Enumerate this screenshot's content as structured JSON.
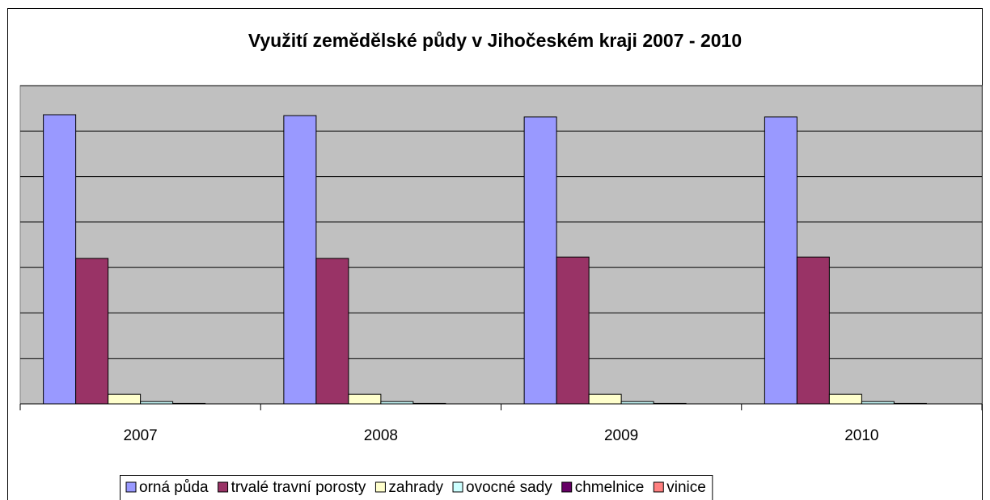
{
  "chart_data": {
    "type": "bar",
    "title": "Využití zemědělské půdy v Jihočeském kraji 2007 - 2010",
    "categories": [
      "2007",
      "2008",
      "2009",
      "2010"
    ],
    "series": [
      {
        "name": "orná půda",
        "color": "#9999ff",
        "values": [
          6.36,
          6.34,
          6.31,
          6.31
        ]
      },
      {
        "name": "trvalé travní porosty",
        "color": "#993366",
        "values": [
          3.2,
          3.2,
          3.23,
          3.23
        ]
      },
      {
        "name": "zahrady",
        "color": "#ffffcc",
        "values": [
          0.21,
          0.21,
          0.21,
          0.21
        ]
      },
      {
        "name": "ovocné sady",
        "color": "#ccffff",
        "values": [
          0.05,
          0.05,
          0.05,
          0.05
        ]
      },
      {
        "name": "chmelnice",
        "color": "#660066",
        "values": [
          0.01,
          0.01,
          0.01,
          0.01
        ]
      },
      {
        "name": "vinice",
        "color": "#ff8080",
        "values": [
          0,
          0,
          0,
          0
        ]
      }
    ],
    "ylim": [
      0,
      7
    ],
    "yticks": [
      0,
      1,
      2,
      3,
      4,
      5,
      6,
      7
    ],
    "grid": true,
    "legend": "bottom"
  }
}
